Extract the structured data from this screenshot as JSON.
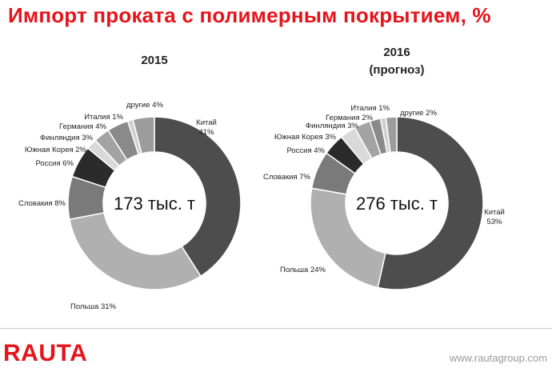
{
  "title": "Импорт проката с полимерным покрытием, %",
  "footer": {
    "logo": "RAUTA",
    "url": "www.rautagroup.com"
  },
  "colors": {
    "title": "#e5141b"
  },
  "chart_data": [
    {
      "type": "pie",
      "subtype": "donut",
      "title": "2015",
      "subtitle": "",
      "center_label": "173 тыс. т",
      "slices": [
        {
          "name": "Китай",
          "value": 41,
          "label": "Китай\n41%",
          "color": "#4d4d4d"
        },
        {
          "name": "Польша",
          "value": 31,
          "label": "Польша 31%",
          "color": "#b0b0b0"
        },
        {
          "name": "Словакия",
          "value": 8,
          "label": "Словакия 8%",
          "color": "#7a7a7a"
        },
        {
          "name": "Россия",
          "value": 6,
          "label": "Россия 6%",
          "color": "#2b2b2b"
        },
        {
          "name": "Южная Корея",
          "value": 2,
          "label": "Южная Корея 2%",
          "color": "#d9d9d9"
        },
        {
          "name": "Финляндия",
          "value": 3,
          "label": "Финляндия 3%",
          "color": "#a3a3a3"
        },
        {
          "name": "Германия",
          "value": 4,
          "label": "Германия 4%",
          "color": "#8a8a8a"
        },
        {
          "name": "Италия",
          "value": 1,
          "label": "Италия 1%",
          "color": "#cfcfcf"
        },
        {
          "name": "другие",
          "value": 4,
          "label": "другие 4%",
          "color": "#9c9c9c"
        }
      ]
    },
    {
      "type": "pie",
      "subtype": "donut",
      "title": "2016",
      "subtitle": "(прогноз)",
      "center_label": "276 тыс. т",
      "slices": [
        {
          "name": "Китай",
          "value": 53,
          "label": "Китай\n53%",
          "color": "#4d4d4d"
        },
        {
          "name": "Польша",
          "value": 24,
          "label": "Польша 24%",
          "color": "#b0b0b0"
        },
        {
          "name": "Словакия",
          "value": 7,
          "label": "Словакия 7%",
          "color": "#7a7a7a"
        },
        {
          "name": "Россия",
          "value": 4,
          "label": "Россия 4%",
          "color": "#2b2b2b"
        },
        {
          "name": "Южная Корея",
          "value": 3,
          "label": "Южная Корея 3%",
          "color": "#d9d9d9"
        },
        {
          "name": "Финляндия",
          "value": 3,
          "label": "Финляндия 3%",
          "color": "#a3a3a3"
        },
        {
          "name": "Германия",
          "value": 2,
          "label": "Германия 2%",
          "color": "#8a8a8a"
        },
        {
          "name": "Италия",
          "value": 1,
          "label": "Италия 1%",
          "color": "#cfcfcf"
        },
        {
          "name": "другие",
          "value": 2,
          "label": "другие 2%",
          "color": "#9c9c9c"
        }
      ]
    }
  ]
}
